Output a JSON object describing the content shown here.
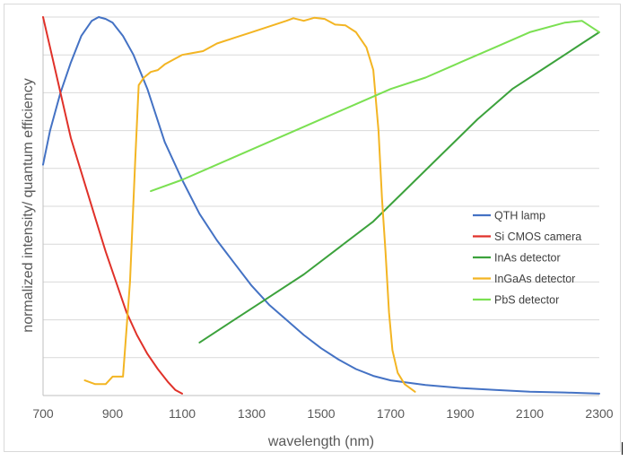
{
  "chart_data": {
    "type": "line",
    "title": "",
    "xlabel": "wavelength (nm)",
    "ylabel": "normalized intensity/ quantum efficiency",
    "xlim": [
      700,
      2300
    ],
    "ylim": [
      0,
      1
    ],
    "x_ticks": [
      700,
      900,
      1100,
      1300,
      1500,
      1700,
      1900,
      2100,
      2300
    ],
    "y_tick_count": 10,
    "y_tick_labels_shown": false,
    "grid": "horizontal",
    "legend_position": "right-center",
    "series": [
      {
        "name": "QTH lamp",
        "color": "#4472c4",
        "points": [
          [
            700,
            0.61
          ],
          [
            720,
            0.7
          ],
          [
            750,
            0.8
          ],
          [
            780,
            0.88
          ],
          [
            810,
            0.95
          ],
          [
            840,
            0.99
          ],
          [
            860,
            1.0
          ],
          [
            880,
            0.995
          ],
          [
            900,
            0.985
          ],
          [
            930,
            0.95
          ],
          [
            960,
            0.9
          ],
          [
            1000,
            0.81
          ],
          [
            1050,
            0.67
          ],
          [
            1100,
            0.57
          ],
          [
            1150,
            0.48
          ],
          [
            1200,
            0.41
          ],
          [
            1250,
            0.35
          ],
          [
            1300,
            0.29
          ],
          [
            1350,
            0.24
          ],
          [
            1400,
            0.2
          ],
          [
            1450,
            0.16
          ],
          [
            1500,
            0.125
          ],
          [
            1550,
            0.095
          ],
          [
            1600,
            0.07
          ],
          [
            1650,
            0.052
          ],
          [
            1700,
            0.04
          ],
          [
            1800,
            0.028
          ],
          [
            1900,
            0.02
          ],
          [
            2000,
            0.015
          ],
          [
            2100,
            0.01
          ],
          [
            2200,
            0.008
          ],
          [
            2300,
            0.005
          ]
        ]
      },
      {
        "name": "Si CMOS camera",
        "color": "#e03129",
        "points": [
          [
            700,
            1.0
          ],
          [
            720,
            0.92
          ],
          [
            750,
            0.8
          ],
          [
            780,
            0.68
          ],
          [
            820,
            0.56
          ],
          [
            850,
            0.47
          ],
          [
            880,
            0.38
          ],
          [
            910,
            0.3
          ],
          [
            940,
            0.22
          ],
          [
            970,
            0.16
          ],
          [
            1000,
            0.11
          ],
          [
            1030,
            0.07
          ],
          [
            1060,
            0.035
          ],
          [
            1080,
            0.015
          ],
          [
            1100,
            0.005
          ]
        ]
      },
      {
        "name": "InAs detector",
        "color": "#3ca23c",
        "points": [
          [
            1150,
            0.14
          ],
          [
            1250,
            0.2
          ],
          [
            1350,
            0.26
          ],
          [
            1450,
            0.32
          ],
          [
            1550,
            0.39
          ],
          [
            1650,
            0.46
          ],
          [
            1750,
            0.55
          ],
          [
            1850,
            0.64
          ],
          [
            1950,
            0.73
          ],
          [
            2050,
            0.81
          ],
          [
            2150,
            0.87
          ],
          [
            2250,
            0.93
          ],
          [
            2300,
            0.96
          ]
        ]
      },
      {
        "name": "InGaAs detector",
        "color": "#f3b523",
        "points": [
          [
            820,
            0.04
          ],
          [
            850,
            0.03
          ],
          [
            880,
            0.03
          ],
          [
            900,
            0.05
          ],
          [
            930,
            0.05
          ],
          [
            950,
            0.3
          ],
          [
            965,
            0.62
          ],
          [
            975,
            0.82
          ],
          [
            990,
            0.84
          ],
          [
            1010,
            0.855
          ],
          [
            1030,
            0.86
          ],
          [
            1050,
            0.875
          ],
          [
            1080,
            0.89
          ],
          [
            1100,
            0.9
          ],
          [
            1130,
            0.905
          ],
          [
            1160,
            0.91
          ],
          [
            1200,
            0.93
          ],
          [
            1250,
            0.945
          ],
          [
            1300,
            0.96
          ],
          [
            1350,
            0.975
          ],
          [
            1400,
            0.99
          ],
          [
            1420,
            0.997
          ],
          [
            1450,
            0.99
          ],
          [
            1480,
            0.998
          ],
          [
            1510,
            0.995
          ],
          [
            1540,
            0.98
          ],
          [
            1570,
            0.978
          ],
          [
            1600,
            0.96
          ],
          [
            1630,
            0.92
          ],
          [
            1650,
            0.86
          ],
          [
            1665,
            0.7
          ],
          [
            1675,
            0.52
          ],
          [
            1685,
            0.38
          ],
          [
            1695,
            0.22
          ],
          [
            1705,
            0.12
          ],
          [
            1720,
            0.06
          ],
          [
            1740,
            0.03
          ],
          [
            1770,
            0.01
          ]
        ]
      },
      {
        "name": "PbS detector",
        "color": "#7be052",
        "points": [
          [
            1010,
            0.54
          ],
          [
            1100,
            0.57
          ],
          [
            1200,
            0.61
          ],
          [
            1300,
            0.65
          ],
          [
            1400,
            0.69
          ],
          [
            1500,
            0.73
          ],
          [
            1600,
            0.77
          ],
          [
            1700,
            0.81
          ],
          [
            1800,
            0.84
          ],
          [
            1900,
            0.88
          ],
          [
            2000,
            0.92
          ],
          [
            2100,
            0.96
          ],
          [
            2200,
            0.985
          ],
          [
            2250,
            0.99
          ],
          [
            2300,
            0.96
          ]
        ]
      }
    ]
  }
}
